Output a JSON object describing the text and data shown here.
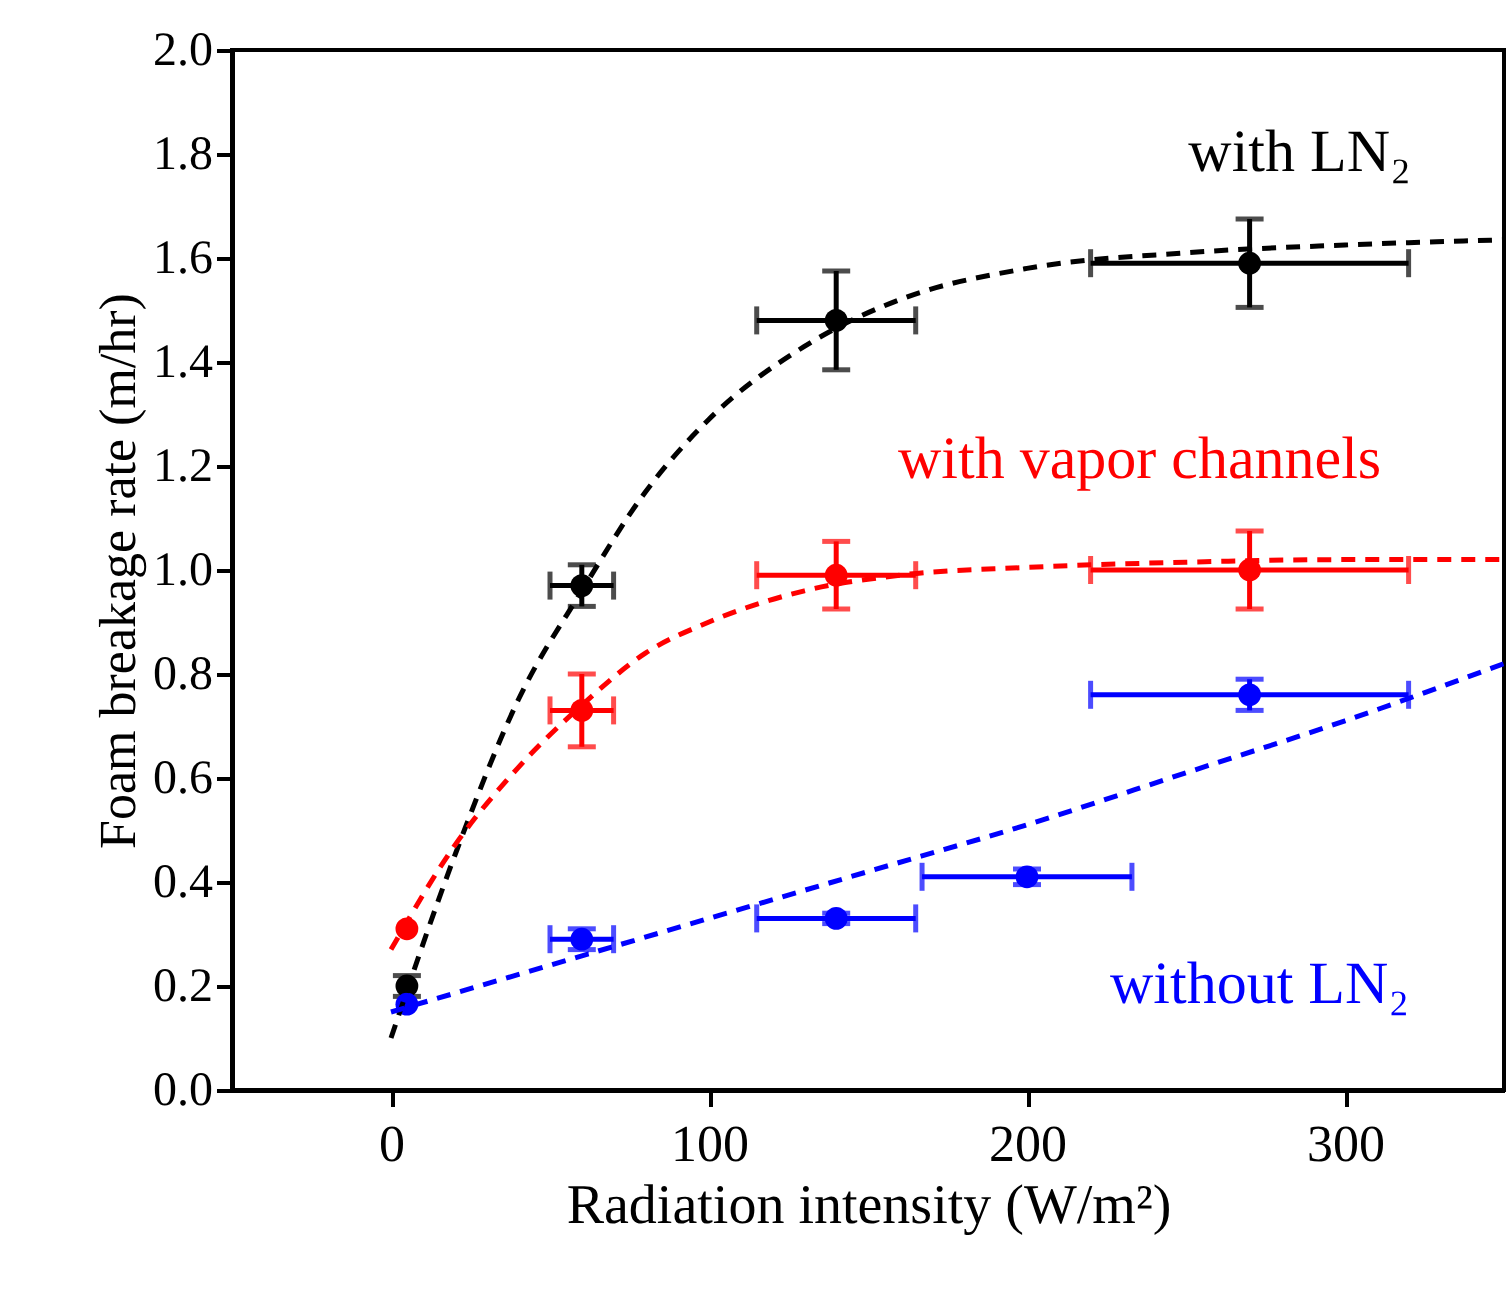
{
  "chart_data": {
    "type": "scatter",
    "xlabel": "Radiation intensity (W/m²)",
    "ylabel": "Foam breakage rate (m/hr)",
    "xlim": [
      -50,
      350
    ],
    "xticks": [
      0,
      100,
      200,
      300
    ],
    "ylim": [
      0,
      2.0
    ],
    "yticks": [
      {
        "value": 0,
        "label": "0.0"
      },
      0.2,
      0.4,
      0.6,
      0.8,
      {
        "value": 1,
        "label": "1.0"
      },
      1.2,
      1.4,
      1.6,
      1.8,
      {
        "value": 2,
        "label": "2.0"
      }
    ],
    "grid": false,
    "marker": "circle",
    "series": [
      {
        "name": "with LN₂",
        "color": "#000000",
        "x": [
          5,
          60,
          140,
          270
        ],
        "values": [
          0.2,
          0.97,
          1.48,
          1.59
        ],
        "errors": [
          0.02,
          0.04,
          0.095,
          0.085
        ],
        "xerrors": [
          null,
          10,
          25,
          50
        ]
      },
      {
        "name": "with vapor channels",
        "color": "#ff0000",
        "x": [
          5,
          60,
          140,
          270
        ],
        "values": [
          0.31,
          0.73,
          0.99,
          1.0
        ],
        "errors": [
          null,
          0.07,
          0.065,
          0.075
        ],
        "xerrors": [
          null,
          10,
          25,
          50
        ]
      },
      {
        "name": "without LN₂",
        "color": "#0000ff",
        "x": [
          5,
          60,
          140,
          200,
          270
        ],
        "values": [
          0.165,
          0.29,
          0.33,
          0.41,
          0.76
        ],
        "errors": [
          null,
          0.02,
          0.01,
          0.015,
          0.03
        ],
        "xerrors": [
          null,
          10,
          25,
          33,
          50
        ]
      },
      {
        "type": "line",
        "color": "#000000",
        "line_style": "dashed",
        "marker": "none",
        "x": [
          0,
          20,
          40,
          60,
          80,
          100,
          130,
          160,
          200,
          250,
          300,
          350
        ],
        "values": [
          0.1,
          0.45,
          0.75,
          0.96,
          1.15,
          1.29,
          1.43,
          1.52,
          1.58,
          1.61,
          1.625,
          1.635
        ]
      },
      {
        "type": "line",
        "color": "#ff0000",
        "line_style": "dashed",
        "marker": "none",
        "x": [
          0,
          20,
          40,
          60,
          80,
          100,
          130,
          160,
          200,
          250,
          300,
          350
        ],
        "values": [
          0.27,
          0.47,
          0.62,
          0.74,
          0.84,
          0.9,
          0.96,
          0.99,
          1.005,
          1.015,
          1.02,
          1.02
        ]
      },
      {
        "type": "line",
        "color": "#0000ff",
        "line_style": "dashed",
        "marker": "none",
        "x": [
          0,
          50,
          100,
          150,
          200,
          250,
          300,
          350
        ],
        "values": [
          0.15,
          0.24,
          0.33,
          0.42,
          0.51,
          0.61,
          0.71,
          0.82
        ]
      }
    ]
  }
}
